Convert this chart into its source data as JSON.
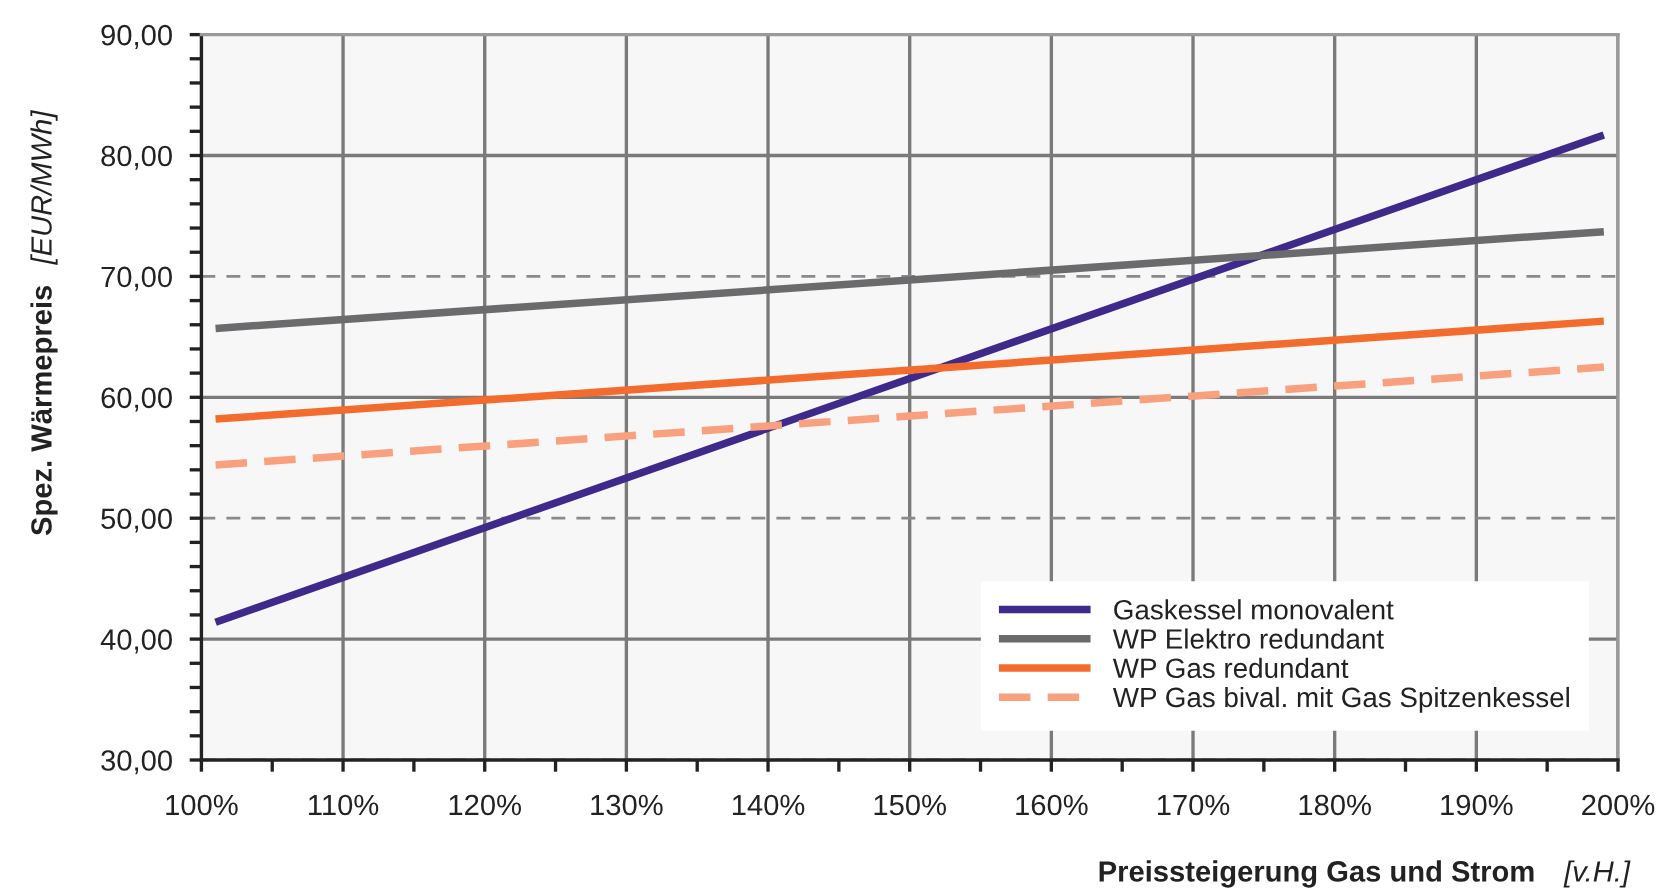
{
  "chart_data": {
    "type": "line",
    "xlabel": "Preissteigerung Gas und Strom [v.H.]",
    "ylabel": "Spez. Wärmepreis [EUR/MWh]",
    "x": [
      101,
      199
    ],
    "series": [
      {
        "name": "Gaskessel monovalent",
        "color": "#3f2a8c",
        "values": [
          41.4,
          81.7
        ]
      },
      {
        "name": "WP Elektro redundant",
        "color": "#6b6b6d",
        "values": [
          65.7,
          73.7
        ]
      },
      {
        "name": "WP Gas redundant",
        "color": "#f36c2e",
        "values": [
          58.2,
          66.3
        ]
      },
      {
        "name": "WP Gas bival. mit Gas Spitzenkessel",
        "color": "#f9a07e",
        "values": [
          54.4,
          62.5
        ],
        "line_style": "dashed"
      }
    ],
    "xlim": [
      100,
      200
    ],
    "xticks": [
      {
        "value": 100,
        "label": "100%"
      },
      {
        "value": 105,
        "label": null
      },
      {
        "value": 110,
        "label": "110%"
      },
      {
        "value": 115,
        "label": null
      },
      {
        "value": 120,
        "label": "120%"
      },
      {
        "value": 125,
        "label": null
      },
      {
        "value": 130,
        "label": "130%"
      },
      {
        "value": 135,
        "label": null
      },
      {
        "value": 140,
        "label": "140%"
      },
      {
        "value": 145,
        "label": null
      },
      {
        "value": 150,
        "label": "150%"
      },
      {
        "value": 155,
        "label": null
      },
      {
        "value": 160,
        "label": "160%"
      },
      {
        "value": 165,
        "label": null
      },
      {
        "value": 170,
        "label": "170%"
      },
      {
        "value": 175,
        "label": null
      },
      {
        "value": 180,
        "label": "180%"
      },
      {
        "value": 185,
        "label": null
      },
      {
        "value": 190,
        "label": "190%"
      },
      {
        "value": 195,
        "label": null
      },
      {
        "value": 200,
        "label": "200%"
      }
    ],
    "ylim": [
      30,
      90
    ],
    "yticks": [
      {
        "value": 30,
        "label": "30,00"
      },
      {
        "value": 32,
        "label": null
      },
      {
        "value": 34,
        "label": null
      },
      {
        "value": 36,
        "label": null
      },
      {
        "value": 38,
        "label": null
      },
      {
        "value": 40,
        "label": "40,00"
      },
      {
        "value": 42,
        "label": null
      },
      {
        "value": 44,
        "label": null
      },
      {
        "value": 46,
        "label": null
      },
      {
        "value": 48,
        "label": null
      },
      {
        "value": 50,
        "label": "50,00"
      },
      {
        "value": 52,
        "label": null
      },
      {
        "value": 54,
        "label": null
      },
      {
        "value": 56,
        "label": null
      },
      {
        "value": 58,
        "label": null
      },
      {
        "value": 60,
        "label": "60,00"
      },
      {
        "value": 62,
        "label": null
      },
      {
        "value": 64,
        "label": null
      },
      {
        "value": 66,
        "label": null
      },
      {
        "value": 68,
        "label": null
      },
      {
        "value": 70,
        "label": "70,00"
      },
      {
        "value": 72,
        "label": null
      },
      {
        "value": 74,
        "label": null
      },
      {
        "value": 76,
        "label": null
      },
      {
        "value": 78,
        "label": null
      },
      {
        "value": 80,
        "label": "80,00"
      },
      {
        "value": 82,
        "label": null
      },
      {
        "value": 84,
        "label": null
      },
      {
        "value": 86,
        "label": null
      },
      {
        "value": 88,
        "label": null
      },
      {
        "value": 90,
        "label": "90,00"
      }
    ],
    "grid": true,
    "legend": "bottom right"
  }
}
